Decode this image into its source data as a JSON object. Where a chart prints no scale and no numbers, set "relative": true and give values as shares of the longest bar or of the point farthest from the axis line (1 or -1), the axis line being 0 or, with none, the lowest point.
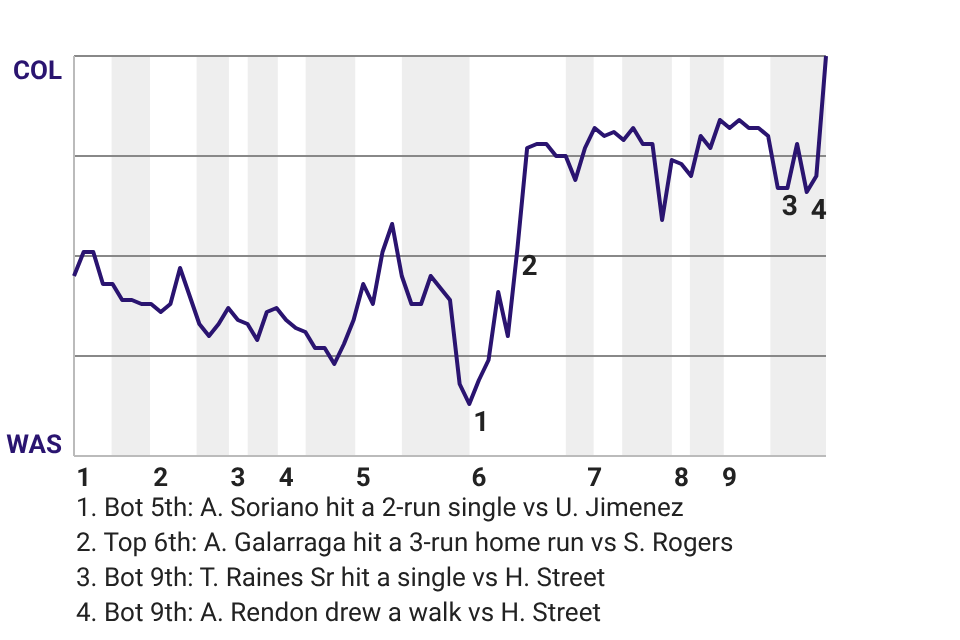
{
  "chart_data": {
    "type": "line",
    "relative": true,
    "categories": [
      null,
      "1",
      null,
      null,
      null,
      null,
      null,
      null,
      null,
      "2",
      null,
      null,
      null,
      null,
      null,
      null,
      null,
      "3",
      null,
      null,
      null,
      null,
      "4",
      null,
      null,
      null,
      null,
      null,
      null,
      null,
      "5",
      null,
      null,
      null,
      null,
      null,
      null,
      null,
      null,
      null,
      null,
      null,
      "6",
      null,
      null,
      null,
      null,
      null,
      null,
      null,
      null,
      null,
      null,
      null,
      "7",
      null,
      null,
      null,
      null,
      null,
      null,
      null,
      null,
      "8",
      null,
      null,
      null,
      null,
      "9",
      null,
      null,
      null,
      null,
      null,
      null,
      null,
      null,
      null,
      null
    ],
    "ref_lines": [
      {
        "axis": "y",
        "value": 0.25,
        "color": "#888888"
      },
      {
        "axis": "y",
        "value": 0.5,
        "color": "#888888"
      },
      {
        "axis": "y",
        "value": 0.75,
        "color": "#888888"
      },
      {
        "axis": "y",
        "value": 1,
        "color": "#888888"
      }
    ],
    "series": [
      {
        "color": "#2a1470",
        "values": [
          0.45,
          0.51,
          0.51,
          0.43,
          0.43,
          0.39,
          0.39,
          0.38,
          0.38,
          0.36,
          0.38,
          0.47,
          0.4,
          0.33,
          0.3,
          0.33,
          0.37,
          0.34,
          0.33,
          0.29,
          0.36,
          0.37,
          0.34,
          0.32,
          0.31,
          0.27,
          0.27,
          0.23,
          0.28,
          0.34,
          0.43,
          0.38,
          0.51,
          0.58,
          0.45,
          0.38,
          0.38,
          0.45,
          0.42,
          0.39,
          0.18,
          0.13,
          0.19,
          0.24,
          0.41,
          0.3,
          0.52,
          0.77,
          0.78,
          0.78,
          0.75,
          0.75,
          0.69,
          0.77,
          0.82,
          0.8,
          0.81,
          0.79,
          0.82,
          0.78,
          0.78,
          0.59,
          0.74,
          0.73,
          0.7,
          0.8,
          0.77,
          0.84,
          0.82,
          0.84,
          0.82,
          0.82,
          0.8,
          0.67,
          0.67,
          0.78,
          0.66,
          0.7,
          1
        ]
      }
    ],
    "annotations": [
      "COL",
      "WAS",
      {
        "text": "1",
        "y": 0.13
      },
      {
        "text": "2",
        "y": 0.52
      },
      {
        "text": "3",
        "y": 0.67
      },
      {
        "text": "4",
        "y": 0.66
      },
      "1. Bot 5th: A. Soriano hit a 2-run single vs U. Jimenez",
      "2. Top 6th: A. Galarraga hit a 3-run home run vs S. Rogers",
      "3. Bot 9th: T. Raines Sr hit a single vs H. Street",
      "4. Bot 9th: A. Rendon drew a walk vs H. Street"
    ]
  }
}
